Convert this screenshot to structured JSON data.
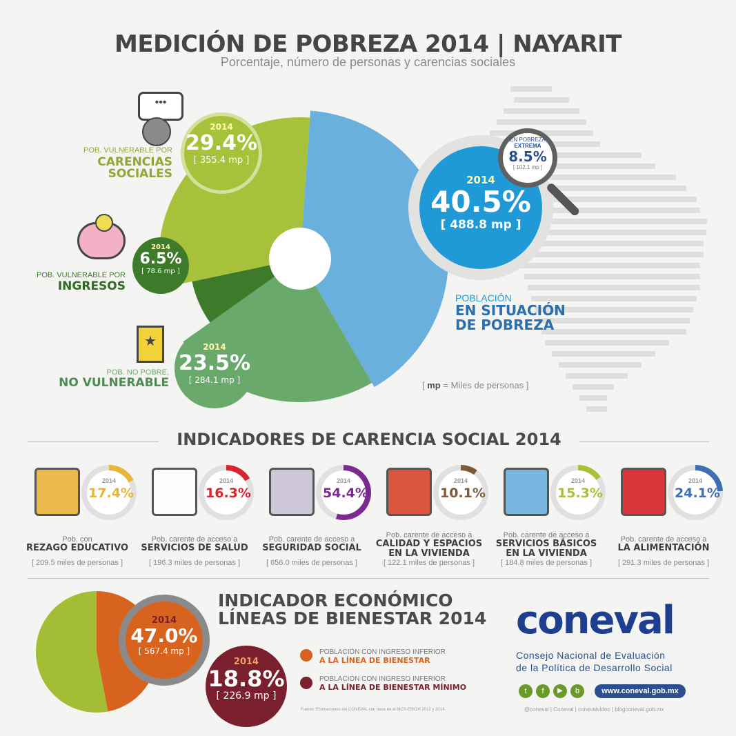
{
  "header": {
    "title": "MEDICIÓN DE POBREZA 2014 | NAYARIT",
    "subtitle": "Porcentaje, número de personas y carencias sociales"
  },
  "colors": {
    "lime": "#a7c23a",
    "dark_green": "#3d7a2a",
    "green": "#6aa96c",
    "blue": "#6ab0dc",
    "blue_dark": "#1f9ad6",
    "navy": "#2b4f8f",
    "orange": "#d8631f",
    "maroon": "#7a1f2e",
    "olive": "#a3bd35"
  },
  "chart_data": [
    {
      "type": "pie",
      "title": "MEDICIÓN DE POBREZA 2014 | NAYARIT",
      "slices": [
        {
          "name": "POBLACIÓN EN SITUACIÓN DE POBREZA",
          "value": 40.5,
          "mp": 488.8
        },
        {
          "name": "POB. NO POBRE, NO VULNERABLE",
          "value": 23.5,
          "mp": 284.1
        },
        {
          "name": "POB. VULNERABLE POR INGRESOS",
          "value": 6.5,
          "mp": 78.6
        },
        {
          "name": "POB. VULNERABLE POR CARENCIAS SOCIALES",
          "value": 29.4,
          "mp": 355.4
        }
      ],
      "extreme": {
        "name": "EN POBREZA EXTREMA",
        "value": 8.5,
        "mp": 102.1
      }
    },
    {
      "type": "bar",
      "title": "INDICADORES DE CARENCIA SOCIAL 2014",
      "categories": [
        "REZAGO EDUCATIVO",
        "SERVICIOS DE SALUD",
        "SEGURIDAD SOCIAL",
        "CALIDAD Y ESPACIOS EN LA VIVIENDA",
        "SERVICIOS BÁSICOS EN LA VIVIENDA",
        "LA ALIMENTACIÓN"
      ],
      "values": [
        17.4,
        16.3,
        54.4,
        10.1,
        15.3,
        24.1
      ],
      "mp": [
        209.5,
        196.3,
        656.0,
        122.1,
        184.8,
        291.3
      ]
    },
    {
      "type": "pie",
      "title": "INDICADOR ECONÓMICO LÍNEAS DE BIENESTAR 2014",
      "slices": [
        {
          "name": "POBLACIÓN CON INGRESO INFERIOR A LA LÍNEA DE BIENESTAR",
          "value": 47.0,
          "mp": 567.4
        },
        {
          "name": "POBLACIÓN CON INGRESO INFERIOR A LA LÍNEA DE BIENESTAR MÍNIMO",
          "value": 18.8,
          "mp": 226.9
        }
      ]
    }
  ],
  "pie": {
    "carencias": {
      "year": "2014",
      "pct": "29.4%",
      "mp": "[ 355.4 mp ]",
      "small": "POB. VULNERABLE POR",
      "big1": "CARENCIAS",
      "big2": "SOCIALES"
    },
    "ingresos": {
      "year": "2014",
      "pct": "6.5%",
      "mp": "[ 78.6 mp ]",
      "small": "POB. VULNERABLE POR",
      "big": "INGRESOS"
    },
    "novuln": {
      "year": "2014",
      "pct": "23.5%",
      "mp": "[ 284.1 mp ]",
      "small": "POB. NO POBRE,",
      "big": "NO VULNERABLE"
    },
    "pobreza": {
      "year": "2014",
      "pct": "40.5%",
      "mp": "[ 488.8 mp ]",
      "small": "POBLACIÓN",
      "big1": "EN SITUACIÓN",
      "big2": "DE POBREZA"
    },
    "extrema": {
      "line1": "EN POBREZA",
      "line2": "EXTREMA",
      "pct": "8.5%",
      "mp": "[ 102.1 mp ]"
    },
    "mp_note_mp": "mp",
    "mp_note_rest": "= Miles de personas ]",
    "mp_note_open": "["
  },
  "indicators": {
    "title": "INDICADORES DE CARENCIA SOCIAL 2014",
    "items": [
      {
        "year": "2014",
        "pct": "17.4%",
        "top": "Pob. con",
        "big1": "REZAGO EDUCATIVO",
        "big2": "",
        "mp": "[ 209.5 miles de personas ]",
        "color": "#e9b43a",
        "value": 17.4
      },
      {
        "year": "2014",
        "pct": "16.3%",
        "top": "Pob. carente de acceso a",
        "big1": "SERVICIOS DE SALUD",
        "big2": "",
        "mp": "[ 196.3 miles de personas ]",
        "color": "#d8232a",
        "value": 16.3
      },
      {
        "year": "2014",
        "pct": "54.4%",
        "top": "Pob. carente de acceso a",
        "big1": "SEGURIDAD SOCIAL",
        "big2": "",
        "mp": "[ 656.0 miles de personas ]",
        "color": "#7a2b8f",
        "value": 54.4
      },
      {
        "year": "2014",
        "pct": "10.1%",
        "top": "Pob. carente de acceso a",
        "big1": "CALIDAD Y ESPACIOS",
        "big2": "EN LA VIVIENDA",
        "mp": "[ 122.1 miles de personas ]",
        "color": "#7b5a3a",
        "value": 10.1
      },
      {
        "year": "2014",
        "pct": "15.3%",
        "top": "Pob. carente de acceso a",
        "big1": "SERVICIOS BÁSICOS",
        "big2": "EN LA VIVIENDA",
        "mp": "[ 184.8 miles de personas ]",
        "color": "#a7c23a",
        "value": 15.3
      },
      {
        "year": "2014",
        "pct": "24.1%",
        "top": "Pob. carente de acceso a",
        "big1": "LA ALIMENTACIÓN",
        "big2": "",
        "mp": "[ 291.3 miles de personas ]",
        "color": "#3e6fb5",
        "value": 24.1
      }
    ]
  },
  "economic": {
    "title1": "INDICADOR ECONÓMICO",
    "title2": "LÍNEAS DE BIENESTAR 2014",
    "c1": {
      "year": "2014",
      "pct": "47.0%",
      "mp": "[ 567.4 mp ]"
    },
    "c2": {
      "year": "2014",
      "pct": "18.8%",
      "mp": "[ 226.9 mp ]"
    },
    "legend1_small": "POBLACIÓN CON INGRESO INFERIOR",
    "legend1_big": "A LA LÍNEA DE BIENESTAR",
    "legend2_small": "POBLACIÓN CON INGRESO INFERIOR",
    "legend2_big": "A LA LÍNEA DE BIENESTAR MÍNIMO",
    "source": "Fuente: Estimaciones del CONEVAL con base en el MCS-ENIGH 2012 y 2014."
  },
  "brand": {
    "logo": "coneval",
    "line1": "Consejo Nacional de Evaluación",
    "line2": "de la Política de Desarrollo Social",
    "url": "www.coneval.gob.mx",
    "social": "@coneval  |  Coneval  |  conevalvideo  |  blogconeval.gob.mx"
  }
}
